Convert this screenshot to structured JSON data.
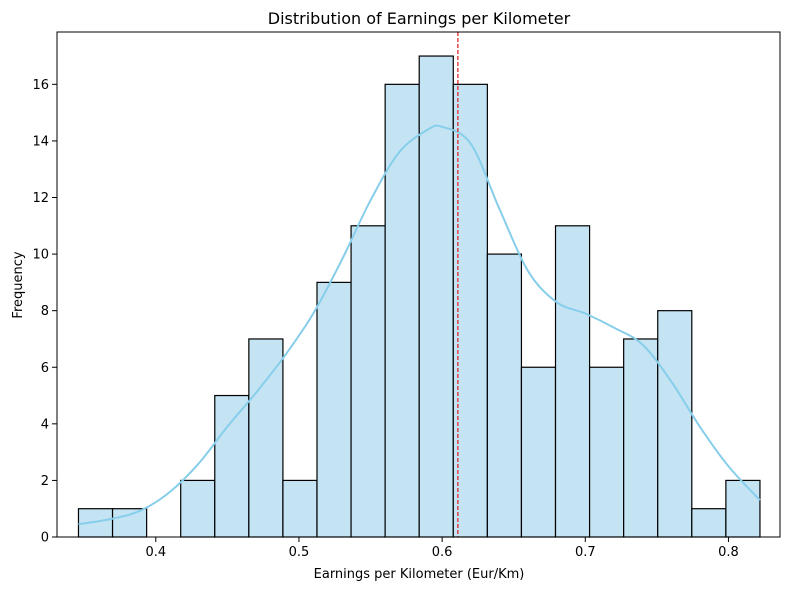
{
  "chart_data": {
    "type": "bar",
    "title": "Distribution of Earnings per Kilometer",
    "xlabel": "Earnings per Kilometer (Eur/Km)",
    "ylabel": "Frequency",
    "xlim": [
      0.331,
      0.836
    ],
    "ylim": [
      0,
      17.85
    ],
    "xticks": [
      0.4,
      0.5,
      0.6,
      0.7,
      0.8
    ],
    "xtick_labels": [
      "0.4",
      "0.5",
      "0.6",
      "0.7",
      "0.8"
    ],
    "yticks": [
      0,
      2,
      4,
      6,
      8,
      10,
      12,
      14,
      16
    ],
    "ytick_labels": [
      "0",
      "2",
      "4",
      "6",
      "8",
      "10",
      "12",
      "14",
      "16"
    ],
    "bins": {
      "edges": [
        0.346,
        0.3698,
        0.3936,
        0.4174,
        0.4412,
        0.465,
        0.4888,
        0.5126,
        0.5364,
        0.5602,
        0.584,
        0.6078,
        0.6316,
        0.6554,
        0.6792,
        0.703,
        0.7268,
        0.7506,
        0.7744,
        0.7982,
        0.822
      ],
      "counts": [
        1,
        1,
        0,
        2,
        5,
        7,
        2,
        9,
        11,
        16,
        17,
        16,
        10,
        6,
        11,
        6,
        7,
        8,
        1,
        2
      ]
    },
    "kde": {
      "x": [
        0.346,
        0.37,
        0.39,
        0.41,
        0.43,
        0.45,
        0.47,
        0.49,
        0.51,
        0.53,
        0.55,
        0.57,
        0.59,
        0.6,
        0.62,
        0.64,
        0.66,
        0.68,
        0.7,
        0.72,
        0.74,
        0.76,
        0.78,
        0.8,
        0.822
      ],
      "y": [
        0.45,
        0.65,
        0.95,
        1.6,
        2.6,
        3.9,
        5.1,
        6.4,
        7.9,
        9.8,
        11.9,
        13.6,
        14.4,
        14.5,
        13.9,
        11.6,
        9.4,
        8.3,
        7.9,
        7.4,
        6.8,
        5.5,
        3.9,
        2.5,
        1.3
      ]
    },
    "mean_line": {
      "x": 0.611,
      "color": "#e31a1c",
      "style": "dashed"
    },
    "colors": {
      "bar_fill": "#c4e4f3",
      "bar_edge": "#000000",
      "kde_line": "#87ceeb"
    },
    "grid": false,
    "legend": "none"
  }
}
